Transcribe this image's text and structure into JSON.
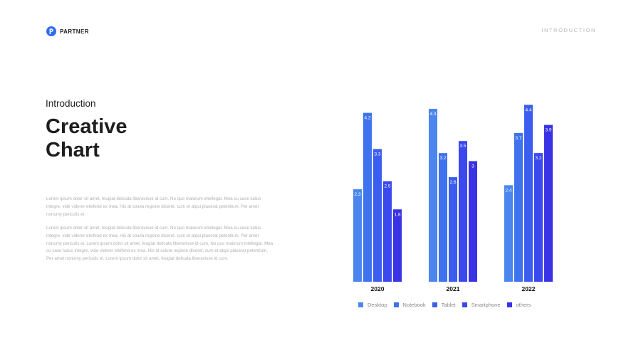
{
  "header": {
    "brand": "PARTNER",
    "brand_color": "#2f6bf5",
    "logo_icon": "p-letter-logo-icon",
    "nav_label": "INTRODUCTION"
  },
  "content": {
    "subtitle": "Introduction",
    "title_line1": "Creative",
    "title_line2": "Chart",
    "paragraph1": "Lorem ipsum dolor sit amet, feugiat delicata liberavisse id cum. No quo maiorum intellegat. Mea cu case ludus integre, vide viderer eleifend ex mea. His at soluta regione diceret, cum et atqui placerat petentium. Per amet nonumy periculis ei.",
    "paragraph2": "Lorem ipsum dolor sit amet, feugiat delicata liberavisse id cum. No quo maiorum intellegat. Mea cu case ludus integre, vide viderer eleifend ex mea. His at soluta regione diceret, cum et atqui placerat petentium. Per amet nonumy periculis ei. Lorem ipsum dolor sit amet, feugiat delicata liberavisse id cum. No quo maiorum intellegat. Mea cu case ludus integre, vide viderer eleifend ex mea. His at soluta regione diceret, cum et atqui placerat petentium. Per amet nonumy periculis ei. Lorem ipsum dolor sit amet, feugiat delicata liberavisse id cum."
  },
  "chart_data": {
    "type": "bar",
    "categories": [
      "2020",
      "2021",
      "2022"
    ],
    "series": [
      {
        "name": "Desktop",
        "values": [
          2.3,
          4.3,
          2.4
        ],
        "color": "#4a86ee"
      },
      {
        "name": "Notebook",
        "values": [
          4.2,
          3.2,
          3.7
        ],
        "color": "#3f72ee"
      },
      {
        "name": "Tablet",
        "values": [
          3.3,
          2.6,
          4.4
        ],
        "color": "#3b5ef0"
      },
      {
        "name": "Smartphone",
        "values": [
          2.5,
          3.5,
          3.2
        ],
        "color": "#3a48ee"
      },
      {
        "name": "others",
        "values": [
          1.8,
          3,
          3.9
        ],
        "color": "#3a33e6"
      }
    ],
    "ylim": [
      0,
      4.6
    ],
    "grid": false,
    "legend": "bottom",
    "show_value_labels": true
  }
}
